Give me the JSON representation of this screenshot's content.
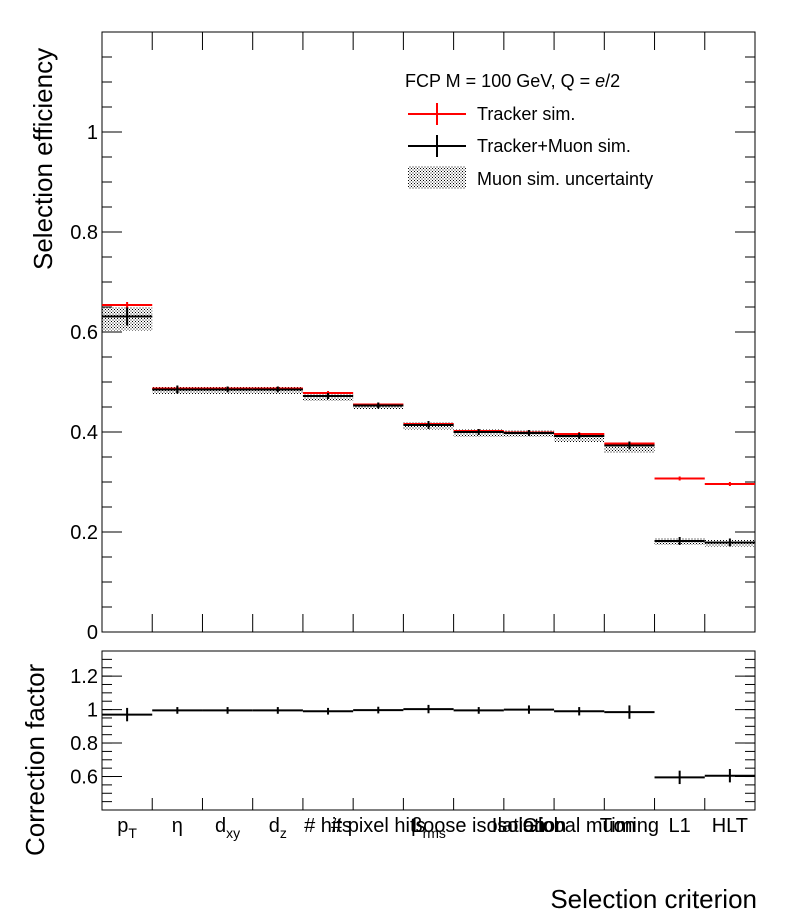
{
  "chart_data": [
    {
      "type": "bar",
      "panel": "top",
      "ylabel": "Selection efficiency",
      "ylim": [
        0,
        1.2
      ],
      "yticks": [
        0,
        0.2,
        0.4,
        0.6,
        0.8,
        1
      ],
      "ytick_labels": [
        "0",
        "0.2",
        "0.4",
        "0.6",
        "0.8",
        "1"
      ],
      "categories": [
        "p_T",
        "η",
        "d_xy",
        "d_z",
        "# hits",
        "# pixel hits",
        "β_rms",
        "Loose isolation",
        "Isolation",
        "Global muon",
        "Timing",
        "L1",
        "HLT"
      ],
      "legend": {
        "title": "FCP M = 100 GeV, Q = ",
        "title_italic": "e",
        "title_suffix": "/2",
        "entries": [
          "Tracker sim.",
          "Tracker+Muon sim.",
          "Muon sim. uncertainty"
        ],
        "position": "top-right"
      },
      "series": [
        {
          "name": "Tracker sim.",
          "color": "#ff0000",
          "values": [
            0.654,
            0.487,
            0.487,
            0.487,
            0.478,
            0.455,
            0.416,
            0.402,
            0.399,
            0.396,
            0.377,
            0.307,
            0.296
          ],
          "errors": [
            0.006,
            0.004,
            0.004,
            0.004,
            0.004,
            0.004,
            0.004,
            0.004,
            0.004,
            0.004,
            0.004,
            0.004,
            0.004
          ]
        },
        {
          "name": "Tracker+Muon sim.",
          "color": "#000000",
          "values": [
            0.631,
            0.485,
            0.485,
            0.485,
            0.472,
            0.453,
            0.414,
            0.4,
            0.398,
            0.392,
            0.373,
            0.182,
            0.179
          ],
          "errors": [
            0.018,
            0.008,
            0.006,
            0.006,
            0.006,
            0.006,
            0.008,
            0.006,
            0.006,
            0.006,
            0.008,
            0.008,
            0.008
          ]
        },
        {
          "name": "Muon sim. uncertainty",
          "lower": [
            0.603,
            0.476,
            0.476,
            0.476,
            0.462,
            0.445,
            0.405,
            0.39,
            0.39,
            0.38,
            0.358,
            0.174,
            0.171
          ],
          "upper": [
            0.65,
            0.49,
            0.49,
            0.49,
            0.478,
            0.458,
            0.42,
            0.405,
            0.403,
            0.398,
            0.378,
            0.188,
            0.184
          ]
        }
      ]
    },
    {
      "type": "bar",
      "panel": "bottom",
      "ylabel": "Correction factor",
      "xlabel": "Selection criterion",
      "ylim": [
        0.4,
        1.35
      ],
      "yticks": [
        0.6,
        0.8,
        1,
        1.2
      ],
      "ytick_labels": [
        "0.6",
        "0.8",
        "1",
        "1.2"
      ],
      "categories": [
        "p_T",
        "η",
        "d_xy",
        "d_z",
        "# hits",
        "# pixel hits",
        "β_rms",
        "Loose isolation",
        "Isolation",
        "Global muon",
        "Timing",
        "L1",
        "HLT"
      ],
      "series": [
        {
          "name": "Correction factor",
          "color": "#000000",
          "values": [
            0.97,
            0.995,
            0.995,
            0.995,
            0.99,
            0.997,
            1.003,
            0.995,
            1.0,
            0.99,
            0.985,
            0.595,
            0.605
          ],
          "errors": [
            0.04,
            0.02,
            0.02,
            0.02,
            0.02,
            0.02,
            0.025,
            0.02,
            0.025,
            0.025,
            0.04,
            0.04,
            0.04
          ]
        }
      ]
    }
  ]
}
